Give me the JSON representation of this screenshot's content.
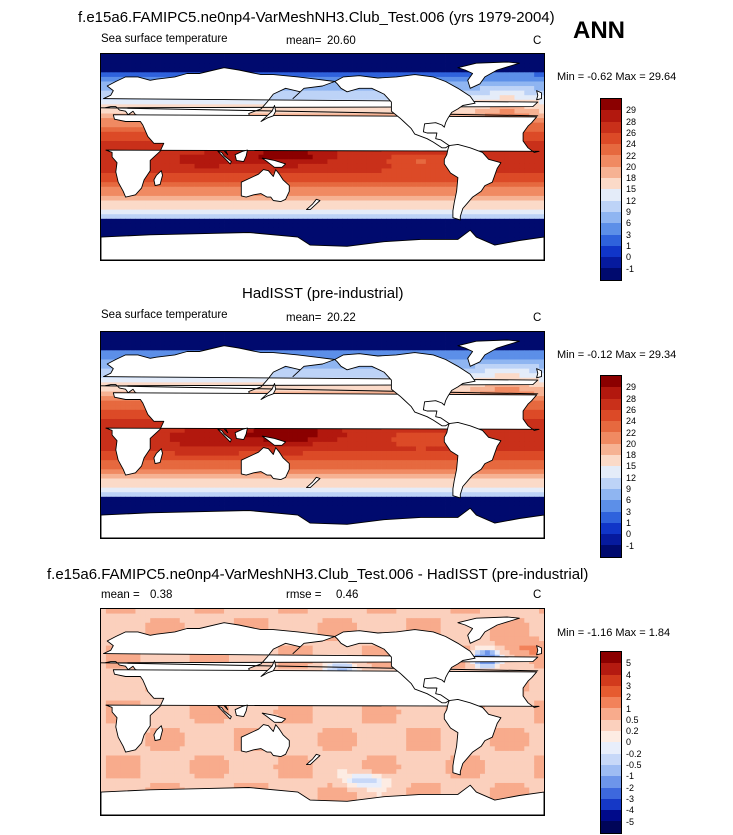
{
  "season": "ANN",
  "panels": [
    {
      "title": "f.e15a6.FAMIPC5.ne0np4-VarMeshNH3.Club_Test.006 (yrs 1979-2004)",
      "field": "Sea surface temperature",
      "mean_label": "mean=",
      "mean": "20.60",
      "units": "C",
      "minmax": "Min =  -0.62 Max =  29.64",
      "levels": [
        "29",
        "28",
        "26",
        "24",
        "22",
        "20",
        "18",
        "15",
        "12",
        "9",
        "6",
        "3",
        "1",
        "0",
        "-1"
      ]
    },
    {
      "title": "HadISST (pre-industrial)",
      "field": "Sea surface temperature",
      "mean_label": "mean=",
      "mean": "20.22",
      "units": "C",
      "minmax": "Min =  -0.12 Max =  29.34",
      "levels": [
        "29",
        "28",
        "26",
        "24",
        "22",
        "20",
        "18",
        "15",
        "12",
        "9",
        "6",
        "3",
        "1",
        "0",
        "-1"
      ]
    },
    {
      "title": "f.e15a6.FAMIPC5.ne0np4-VarMeshNH3.Club_Test.006 - HadISST (pre-industrial)",
      "mean_label": "mean =",
      "mean": "0.38",
      "rmse_label": "rmse =",
      "rmse": "0.46",
      "units": "C",
      "minmax": "Min =  -1.16 Max =   1.84",
      "levels": [
        "5",
        "4",
        "3",
        "2",
        "1",
        "0.5",
        "0.2",
        "0",
        "-0.2",
        "-0.5",
        "-1",
        "-2",
        "-3",
        "-4",
        "-5"
      ]
    }
  ],
  "colors": {
    "sst": [
      "#8b0000",
      "#b2180e",
      "#c9301a",
      "#dc4a27",
      "#e6693f",
      "#f08a62",
      "#f6b293",
      "#fbdac8",
      "#e4ecf9",
      "#bdd3f7",
      "#8fb5f1",
      "#5c8fe8",
      "#2f62dc",
      "#1035c8",
      "#061a9e",
      "#000a6e"
    ],
    "diff": [
      "#8b0000",
      "#b41a10",
      "#d23a1c",
      "#e65b30",
      "#f2825a",
      "#f8ab8c",
      "#fbd0bd",
      "#fdece3",
      "#e8eefb",
      "#c7d8f8",
      "#9ebcf3",
      "#6d95ea",
      "#3d68dd",
      "#1538c6",
      "#000a8a",
      "#000558"
    ]
  }
}
